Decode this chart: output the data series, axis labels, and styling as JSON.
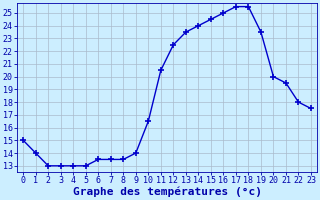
{
  "hours": [
    0,
    1,
    2,
    3,
    4,
    5,
    6,
    7,
    8,
    9,
    10,
    11,
    12,
    13,
    14,
    15,
    16,
    17,
    18,
    19,
    20,
    21,
    22,
    23
  ],
  "temperatures": [
    15,
    14,
    13,
    13,
    13,
    13,
    13.5,
    13.5,
    13.5,
    14,
    16.5,
    20.5,
    22.5,
    23.5,
    24,
    24.5,
    25,
    25.5,
    25.5,
    23.5,
    20,
    19.5,
    18,
    17.5
  ],
  "line_color": "#0000cc",
  "marker": "+",
  "marker_size": 4,
  "marker_linewidth": 1.2,
  "line_width": 1.0,
  "background_color": "#cceeff",
  "grid_color": "#aabbcc",
  "xlabel": "Graphe des températures (°c)",
  "xlabel_fontsize": 8,
  "ylabel_ticks": [
    13,
    14,
    15,
    16,
    17,
    18,
    19,
    20,
    21,
    22,
    23,
    24,
    25
  ],
  "ylim": [
    12.5,
    25.8
  ],
  "xlim": [
    -0.5,
    23.5
  ],
  "tick_fontsize": 6,
  "axis_label_color": "#0000aa",
  "tick_color": "#0000aa",
  "xlabel_fontweight": "bold"
}
